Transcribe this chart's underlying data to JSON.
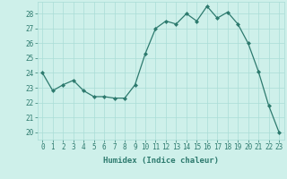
{
  "x": [
    0,
    1,
    2,
    3,
    4,
    5,
    6,
    7,
    8,
    9,
    10,
    11,
    12,
    13,
    14,
    15,
    16,
    17,
    18,
    19,
    20,
    21,
    22,
    23
  ],
  "y": [
    24.0,
    22.8,
    23.2,
    23.5,
    22.8,
    22.4,
    22.4,
    22.3,
    22.3,
    23.2,
    25.3,
    27.0,
    27.5,
    27.3,
    28.0,
    27.5,
    28.5,
    27.7,
    28.1,
    27.3,
    26.0,
    24.1,
    21.8,
    20.0
  ],
  "line_color": "#2d7a6e",
  "marker_color": "#2d7a6e",
  "bg_color": "#cef0ea",
  "grid_color": "#aaddd6",
  "tick_color": "#2d7a6e",
  "xlabel": "Humidex (Indice chaleur)",
  "ylim": [
    19.5,
    28.8
  ],
  "yticks": [
    20,
    21,
    22,
    23,
    24,
    25,
    26,
    27,
    28
  ],
  "xticks": [
    0,
    1,
    2,
    3,
    4,
    5,
    6,
    7,
    8,
    9,
    10,
    11,
    12,
    13,
    14,
    15,
    16,
    17,
    18,
    19,
    20,
    21,
    22,
    23
  ],
  "tick_fontsize": 5.5,
  "label_fontsize": 6.5
}
